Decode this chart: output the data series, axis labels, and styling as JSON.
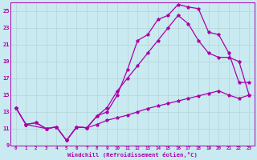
{
  "background_color": "#c8eaf0",
  "grid_color": "#d0d0d0",
  "line_color": "#aa00aa",
  "xlabel": "Windchill (Refroidissement éolien,°C)",
  "xlim": [
    -0.5,
    23.5
  ],
  "ylim": [
    9,
    26
  ],
  "yticks": [
    9,
    11,
    13,
    15,
    17,
    19,
    21,
    23,
    25
  ],
  "xticks": [
    0,
    1,
    2,
    3,
    4,
    5,
    6,
    7,
    8,
    9,
    10,
    11,
    12,
    13,
    14,
    15,
    16,
    17,
    18,
    19,
    20,
    21,
    22,
    23
  ],
  "line_bottom_x": [
    0,
    1,
    2,
    3,
    4,
    5,
    6,
    7,
    8,
    9,
    10,
    11,
    12,
    13,
    14,
    15,
    16,
    17,
    18,
    19,
    20,
    21,
    22,
    23
  ],
  "line_bottom_y": [
    13.5,
    11.5,
    11.7,
    11.0,
    11.2,
    9.6,
    11.2,
    11.1,
    11.5,
    12.0,
    12.3,
    12.6,
    13.0,
    13.4,
    13.7,
    14.0,
    14.3,
    14.6,
    14.9,
    15.2,
    15.5,
    15.0,
    14.6,
    15.0
  ],
  "line_mid_x": [
    0,
    1,
    2,
    3,
    4,
    5,
    6,
    7,
    8,
    9,
    10,
    11,
    12,
    13,
    14,
    15,
    16,
    17,
    18,
    19,
    20,
    21,
    22,
    23
  ],
  "line_mid_y": [
    13.5,
    11.5,
    11.7,
    11.0,
    11.2,
    9.6,
    11.2,
    11.1,
    12.5,
    13.5,
    15.5,
    17.0,
    18.5,
    20.0,
    21.5,
    23.0,
    24.5,
    23.5,
    21.5,
    20.0,
    19.5,
    19.5,
    19.0,
    15.0
  ],
  "line_top_x": [
    0,
    1,
    3,
    4,
    5,
    6,
    7,
    8,
    9,
    10,
    11,
    12,
    13,
    14,
    15,
    16,
    17,
    18,
    19,
    20,
    21,
    22,
    23
  ],
  "line_top_y": [
    13.5,
    11.5,
    11.0,
    11.2,
    9.6,
    11.2,
    11.1,
    12.5,
    13.0,
    15.0,
    18.0,
    21.5,
    22.2,
    24.0,
    24.5,
    25.8,
    25.5,
    25.3,
    22.5,
    22.2,
    20.0,
    16.5,
    16.5
  ]
}
